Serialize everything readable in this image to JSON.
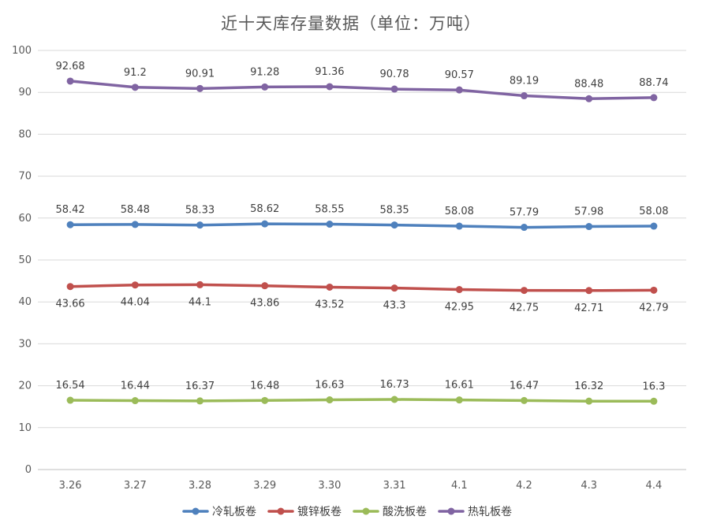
{
  "chart_data": {
    "type": "line",
    "title": "近十天库存量数据（单位：万吨）",
    "xlabel": "",
    "ylabel": "",
    "categories": [
      "3.26",
      "3.27",
      "3.28",
      "3.29",
      "3.30",
      "3.31",
      "4.1",
      "4.2",
      "4.3",
      "4.4"
    ],
    "ylim": [
      0,
      100
    ],
    "yticks": [
      0,
      10,
      20,
      30,
      40,
      50,
      60,
      70,
      80,
      90,
      100
    ],
    "grid": true,
    "legend_position": "bottom",
    "series": [
      {
        "name": "冷轧板卷",
        "color": "#4F81BD",
        "label_position": "above",
        "values": [
          58.42,
          58.48,
          58.33,
          58.62,
          58.55,
          58.35,
          58.08,
          57.79,
          57.98,
          58.08
        ]
      },
      {
        "name": "镀锌板卷",
        "color": "#C0504D",
        "label_position": "below",
        "values": [
          43.66,
          44.04,
          44.1,
          43.86,
          43.52,
          43.3,
          42.95,
          42.75,
          42.71,
          42.79
        ]
      },
      {
        "name": "酸洗板卷",
        "color": "#9BBB59",
        "label_position": "above",
        "values": [
          16.54,
          16.44,
          16.37,
          16.48,
          16.63,
          16.73,
          16.61,
          16.47,
          16.32,
          16.3
        ]
      },
      {
        "name": "热轧板卷",
        "color": "#8064A2",
        "label_position": "above",
        "values": [
          92.68,
          91.2,
          90.91,
          91.28,
          91.36,
          90.78,
          90.57,
          89.19,
          88.48,
          88.74
        ]
      }
    ]
  }
}
